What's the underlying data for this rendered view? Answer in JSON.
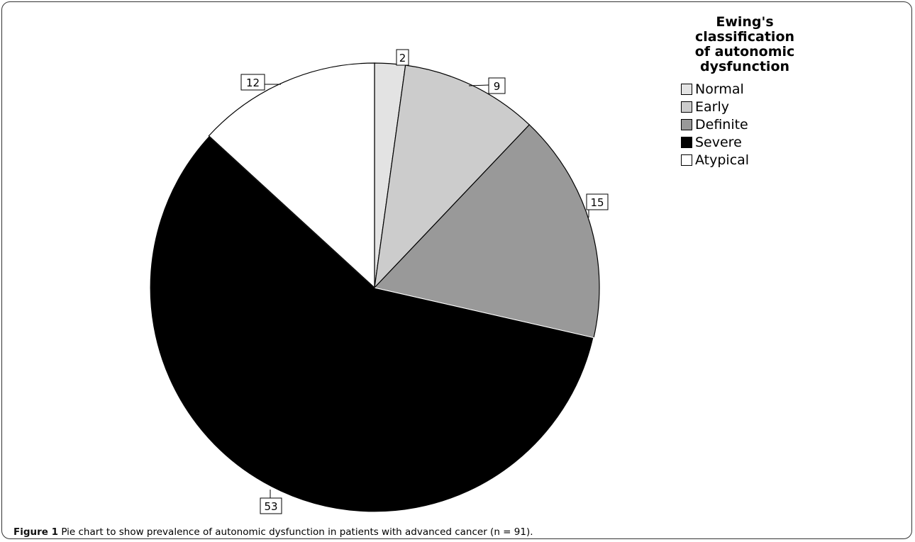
{
  "chart_data": {
    "type": "pie",
    "title": "",
    "legend_title": "Ewing's\nclassification\nof autonomic\ndysfunction",
    "legend_position": "top-right",
    "start_angle": "12 o'clock",
    "direction": "clockwise",
    "slices": [
      {
        "label": "Normal",
        "value": 2,
        "color": "#e3e3e3"
      },
      {
        "label": "Early",
        "value": 9,
        "color": "#cccccc"
      },
      {
        "label": "Definite",
        "value": 15,
        "color": "#999999"
      },
      {
        "label": "Severe",
        "value": 53,
        "color": "#000000"
      },
      {
        "label": "Atypical",
        "value": 12,
        "color": "#ffffff"
      }
    ]
  },
  "caption": {
    "lead": "Figure 1",
    "text": " Pie chart to show prevalence of autonomic dysfunction in patients with advanced cancer (n = 91)."
  }
}
